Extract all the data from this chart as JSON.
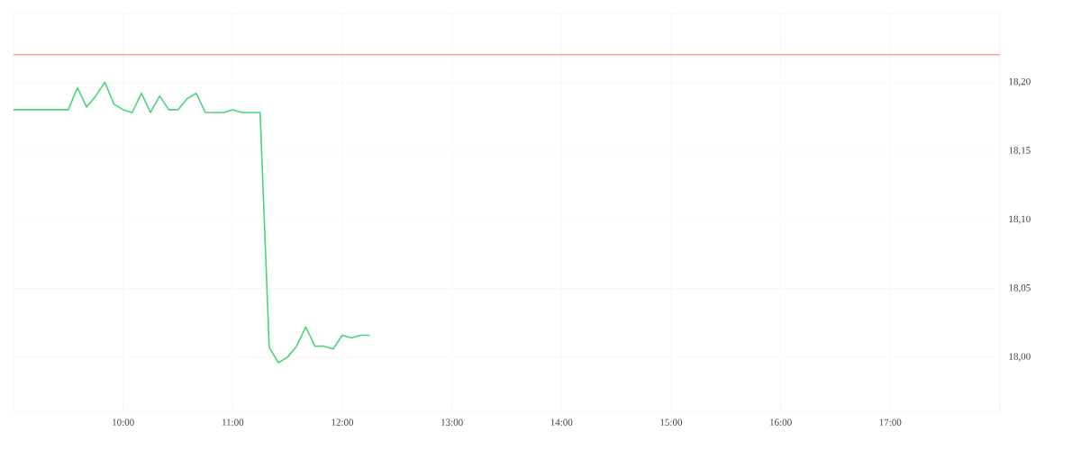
{
  "chart_data": {
    "type": "line",
    "x": [
      9.0,
      9.0833,
      9.1667,
      9.25,
      9.3333,
      9.4167,
      9.5,
      9.5833,
      9.6667,
      9.75,
      9.8333,
      9.9167,
      10.0,
      10.0833,
      10.1667,
      10.25,
      10.3333,
      10.4167,
      10.5,
      10.5833,
      10.6667,
      10.75,
      10.8333,
      10.9167,
      11.0,
      11.0833,
      11.1667,
      11.25,
      11.3333,
      11.4167,
      11.5,
      11.5833,
      11.6667,
      11.75,
      11.8333,
      11.9167,
      12.0,
      12.0833,
      12.1667,
      12.25
    ],
    "series": [
      {
        "color": "#4cd27b",
        "values": [
          18.18,
          18.18,
          18.18,
          18.18,
          18.18,
          18.18,
          18.18,
          18.196,
          18.182,
          18.19,
          18.2,
          18.184,
          18.18,
          18.178,
          18.192,
          18.178,
          18.19,
          18.18,
          18.18,
          18.188,
          18.192,
          18.178,
          18.178,
          18.178,
          18.18,
          18.178,
          18.178,
          18.178,
          18.007,
          17.996,
          18.0,
          18.008,
          18.022,
          18.008,
          18.008,
          18.006,
          18.016,
          18.014,
          18.016,
          18.016
        ]
      }
    ],
    "xlim": [
      9,
      18
    ],
    "xticks": [
      {
        "value": 9,
        "label": null
      },
      {
        "value": 10,
        "label": "10:00"
      },
      {
        "value": 11,
        "label": "11:00"
      },
      {
        "value": 12,
        "label": "12:00"
      },
      {
        "value": 13,
        "label": "13:00"
      },
      {
        "value": 14,
        "label": "14:00"
      },
      {
        "value": 15,
        "label": "15:00"
      },
      {
        "value": 16,
        "label": "16:00"
      },
      {
        "value": 17,
        "label": "17:00"
      },
      {
        "value": 18,
        "label": null
      }
    ],
    "ylim": [
      17.96,
      18.25
    ],
    "yticks": [
      {
        "value": 18.0,
        "label": "18,00"
      },
      {
        "value": 18.05,
        "label": "18,05"
      },
      {
        "value": 18.1,
        "label": "18,10"
      },
      {
        "value": 18.15,
        "label": "18,15"
      },
      {
        "value": 18.2,
        "label": "18,20"
      },
      {
        "value": 18.25,
        "label": null
      }
    ],
    "ref_lines": [
      {
        "axis": "y",
        "value": 18.22,
        "color": "#f05050"
      }
    ],
    "grid": true,
    "marker": "none",
    "line_style": "solid"
  }
}
